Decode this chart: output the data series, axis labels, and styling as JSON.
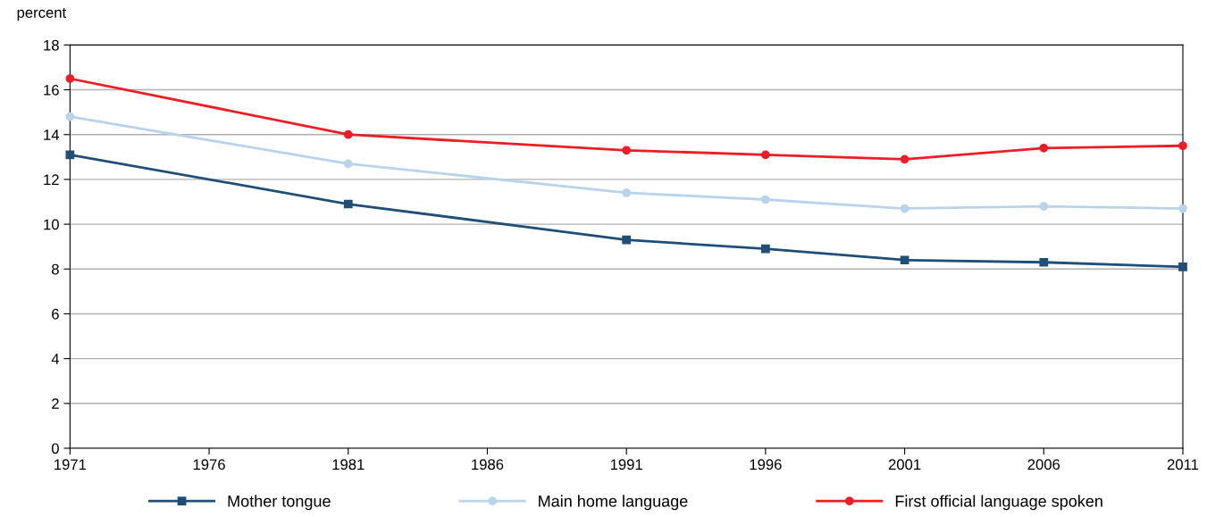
{
  "chart_data": {
    "type": "line",
    "ylabel": "percent",
    "x": [
      1971,
      1981,
      1991,
      1996,
      2001,
      2006,
      2011
    ],
    "xlim": [
      1971,
      2011
    ],
    "xticks": [
      1971,
      1976,
      1981,
      1986,
      1991,
      1996,
      2001,
      2006,
      2011
    ],
    "ylim": [
      0,
      18
    ],
    "yticks": [
      0,
      2,
      4,
      6,
      8,
      10,
      12,
      14,
      16,
      18
    ],
    "grid": "y",
    "legend": "bottom",
    "series": [
      {
        "name": "Mother tongue",
        "color": "#1f4e79",
        "marker": "square",
        "values": [
          13.1,
          10.9,
          9.3,
          8.9,
          8.4,
          8.3,
          8.1
        ]
      },
      {
        "name": "Main home language",
        "color": "#b8d4ec",
        "marker": "circle",
        "values": [
          14.8,
          12.7,
          11.4,
          11.1,
          10.7,
          10.8,
          10.7
        ]
      },
      {
        "name": "First official language spoken",
        "color": "#ee1c25",
        "marker": "circle",
        "values": [
          16.5,
          14.0,
          13.3,
          13.1,
          12.9,
          13.4,
          13.5
        ]
      }
    ]
  }
}
